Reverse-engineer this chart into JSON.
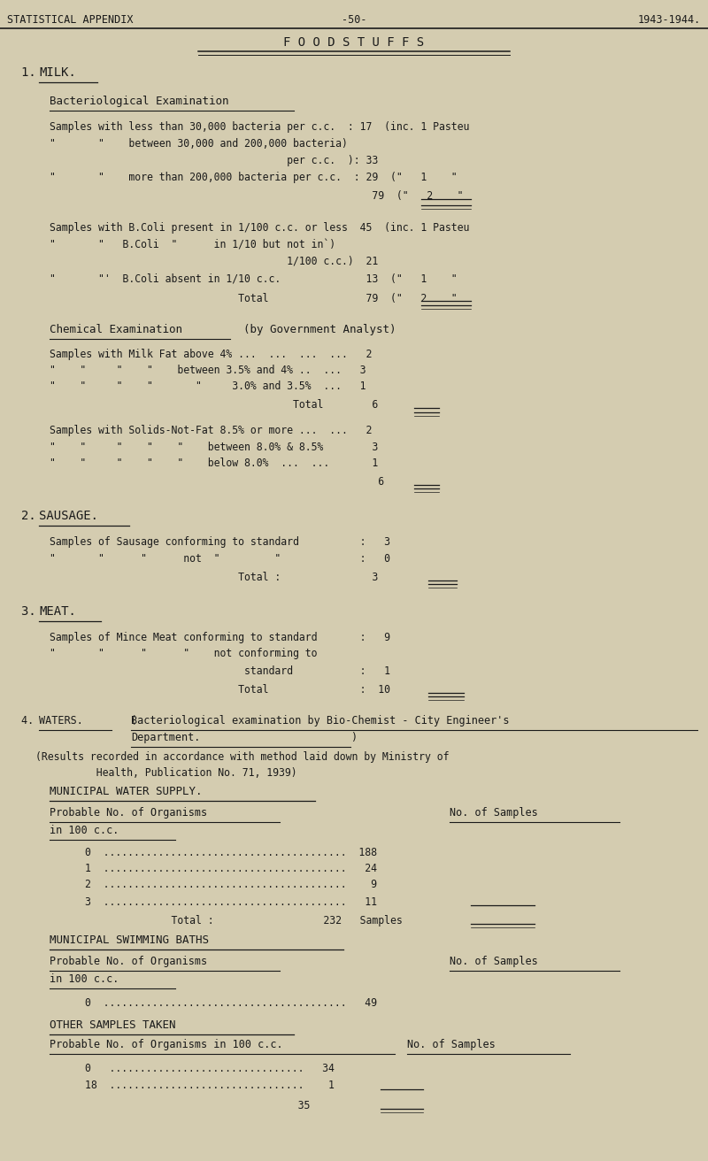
{
  "bg_color": "#d4ccb0",
  "text_color": "#1a1a1a",
  "header_left": "STATISTICAL APPENDIX",
  "header_center": "-50-",
  "header_right": "1943-1944.",
  "title": "F O O D S T U F F S"
}
